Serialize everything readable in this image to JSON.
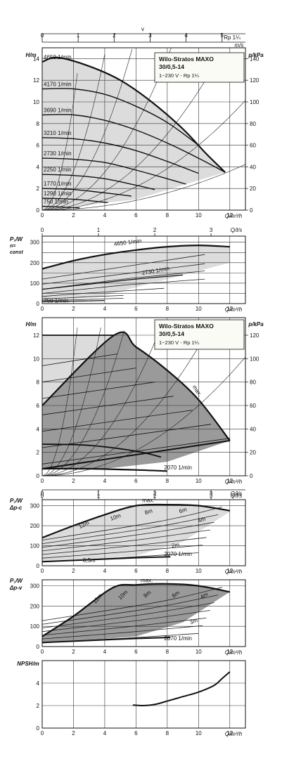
{
  "top_axes": {
    "v_label": "v",
    "ms_label": "m/s",
    "rp_label": "Rp 1¼",
    "ticks": [
      "0",
      "1",
      "2",
      "3",
      "4",
      "5"
    ]
  },
  "info_box": {
    "title": "Wilo-Stratos MAXO",
    "model": "30/0,5-14",
    "supply": "1~230 V - Rp 1¼"
  },
  "colors": {
    "curve": "#111111",
    "region_light": "#dcdcdc",
    "region_dark": "#9a9a9a",
    "grid": "#333333"
  },
  "chart_data": [
    {
      "id": "hq_constant_speed",
      "type": "line",
      "xlabel": "Q/m³/h",
      "ylabel": "H/m",
      "ylabel_right": "p/kPa",
      "xlim": [
        0,
        13
      ],
      "ylim": [
        0,
        15
      ],
      "xticks": [
        0,
        2,
        4,
        6,
        8,
        10,
        12
      ],
      "yticks": [
        0,
        2,
        4,
        6,
        8,
        10,
        12,
        14
      ],
      "yticks_right": [
        0,
        20,
        40,
        60,
        80,
        100,
        120,
        140
      ],
      "annotations": [
        "4650 1/min",
        "4170 1/min",
        "3690 1/min",
        "3210 1/min",
        "2730 1/min",
        "2250 1/min",
        "1770 1/min",
        "1290 1/min",
        "750 1/min"
      ],
      "series": [
        {
          "name": "4650 1/min",
          "x": [
            0,
            1,
            3,
            5,
            7,
            9,
            10.5,
            11.7
          ],
          "y": [
            13.7,
            14.1,
            13.3,
            12,
            10,
            7.5,
            5.2,
            3.5
          ]
        },
        {
          "name": "4170 1/min",
          "x": [
            0,
            2,
            4,
            6,
            8,
            10
          ],
          "y": [
            11.2,
            11.2,
            10.7,
            9.6,
            8.1,
            6
          ]
        },
        {
          "name": "3690 1/min",
          "x": [
            0,
            2,
            4,
            6,
            8,
            10,
            11.7
          ],
          "y": [
            8.8,
            8.8,
            8.3,
            7.4,
            6.2,
            4.8,
            3.5
          ]
        },
        {
          "name": "3210 1/min",
          "x": [
            0,
            2,
            4,
            6,
            8,
            10
          ],
          "y": [
            6.7,
            6.6,
            6.2,
            5.5,
            4.5,
            3.4
          ]
        },
        {
          "name": "2730 1/min",
          "x": [
            0,
            2,
            4,
            6,
            8,
            9.2
          ],
          "y": [
            4.8,
            4.7,
            4.4,
            3.7,
            2.9,
            2.4
          ]
        },
        {
          "name": "2250 1/min",
          "x": [
            0,
            2,
            4,
            6,
            7.2
          ],
          "y": [
            3.3,
            3.2,
            2.9,
            2.3,
            1.9
          ]
        },
        {
          "name": "1770 1/min",
          "x": [
            0,
            2,
            4,
            5.7
          ],
          "y": [
            2,
            1.9,
            1.6,
            1.3
          ]
        },
        {
          "name": "1290 1/min",
          "x": [
            0,
            2,
            4.2
          ],
          "y": [
            1.1,
            1,
            0.7
          ]
        },
        {
          "name": "750 1/min",
          "x": [
            0,
            1,
            2.4
          ],
          "y": [
            0.35,
            0.3,
            0.2
          ]
        }
      ]
    },
    {
      "id": "p1_constant_speed",
      "type": "line",
      "xlabel": "Q/m³/h",
      "x2label": "Q/l/s",
      "ylabel": [
        "P₁/W",
        "n=",
        "const"
      ],
      "xlim": [
        0,
        13
      ],
      "ylim": [
        0,
        330
      ],
      "xticks": [
        0,
        2,
        4,
        6,
        8,
        10,
        12
      ],
      "x2ticks": [
        0,
        1,
        2,
        3
      ],
      "yticks": [
        0,
        100,
        200,
        300
      ],
      "y_minor_ticks": [
        50,
        150,
        250
      ],
      "annotations": [
        "4650 1/min",
        "2730 1/min",
        "750 1/min"
      ],
      "series": [
        {
          "name": "4650 1/min",
          "x": [
            0,
            2,
            4,
            6,
            8,
            10,
            12
          ],
          "y": [
            170,
            210,
            240,
            262,
            278,
            285,
            278
          ]
        },
        {
          "name": "2730 1/min",
          "x": [
            0,
            3,
            6,
            9
          ],
          "y": [
            70,
            95,
            120,
            140
          ]
        },
        {
          "name": "750 1/min",
          "x": [
            0,
            2,
            4
          ],
          "y": [
            10,
            12,
            15
          ]
        }
      ]
    },
    {
      "id": "hq_control_mode",
      "type": "area",
      "xlabel": "Q/m³/h",
      "x2label": "Q/l/s",
      "ylabel": "H/m",
      "ylabel_right": "p/kPa",
      "xlim": [
        0,
        13
      ],
      "ylim": [
        0,
        13.5
      ],
      "xticks": [
        0,
        2,
        4,
        6,
        8,
        10,
        12
      ],
      "x2ticks": [
        0,
        1,
        2,
        3
      ],
      "yticks": [
        0,
        2,
        4,
        6,
        8,
        10,
        12
      ],
      "yticks_right": [
        0,
        20,
        40,
        60,
        80,
        100,
        120
      ],
      "annotations": [
        "max.",
        "2070 1/min"
      ],
      "series": [
        {
          "name": "max.",
          "x": [
            0,
            4.6,
            6,
            8,
            10,
            12
          ],
          "y": [
            6,
            12,
            11,
            9,
            6.5,
            3
          ]
        },
        {
          "name": "2070 1/min",
          "x": [
            0,
            3,
            6,
            8
          ],
          "y": [
            0.6,
            0.6,
            0.5,
            0.4
          ]
        }
      ]
    },
    {
      "id": "p1_dp_c",
      "type": "line",
      "xlabel": "Q/m³/h",
      "x2label": "Q/l/s",
      "ylabel": [
        "P₁/W",
        "Δp-c"
      ],
      "xlim": [
        0,
        13
      ],
      "ylim": [
        0,
        330
      ],
      "xticks": [
        0,
        2,
        4,
        6,
        8,
        10,
        12
      ],
      "x2ticks": [
        0,
        1,
        2,
        3
      ],
      "yticks": [
        0,
        100,
        200,
        300
      ],
      "annotations": [
        "max.",
        "12m",
        "10m",
        "8m",
        "6m",
        "4m",
        "2m",
        "0,5m",
        "2070 1/min"
      ],
      "series": [
        {
          "name": "max.",
          "x": [
            0,
            2,
            4,
            6,
            8,
            10,
            12
          ],
          "y": [
            140,
            200,
            255,
            300,
            305,
            300,
            275
          ]
        },
        {
          "name": "2070 1/min",
          "x": [
            0,
            3,
            6,
            8.2
          ],
          "y": [
            20,
            30,
            40,
            45
          ]
        }
      ]
    },
    {
      "id": "p1_dp_v",
      "type": "line",
      "xlabel": "Q/m³/h",
      "ylabel": [
        "P₁/W",
        "Δp-v"
      ],
      "xlim": [
        0,
        13
      ],
      "ylim": [
        0,
        330
      ],
      "xticks": [
        0,
        2,
        4,
        6,
        8,
        10,
        12
      ],
      "yticks": [
        0,
        100,
        200,
        300
      ],
      "annotations": [
        "max.",
        "12m",
        "10m",
        "8m",
        "6m",
        "4m",
        "3m",
        "2070 1/min"
      ],
      "series": [
        {
          "name": "max.",
          "x": [
            0,
            2,
            4.5,
            6,
            8,
            10,
            12
          ],
          "y": [
            50,
            150,
            290,
            305,
            310,
            300,
            270
          ]
        },
        {
          "name": "2070 1/min",
          "x": [
            0,
            3,
            6,
            8.2
          ],
          "y": [
            20,
            30,
            40,
            45
          ]
        }
      ]
    },
    {
      "id": "npsh",
      "type": "line",
      "xlabel": "Q/m³/h",
      "ylabel": "NPSH/m",
      "xlim": [
        0,
        13
      ],
      "ylim": [
        0,
        6
      ],
      "xticks": [
        0,
        2,
        4,
        6,
        8,
        10,
        12
      ],
      "yticks": [
        0,
        2,
        4
      ],
      "series": [
        {
          "name": "",
          "x": [
            5.8,
            6.5,
            7.2,
            8,
            9,
            10,
            11,
            11.5,
            12
          ],
          "y": [
            2.05,
            2.0,
            2.1,
            2.4,
            2.8,
            3.2,
            3.8,
            4.4,
            5.0
          ]
        }
      ]
    }
  ]
}
